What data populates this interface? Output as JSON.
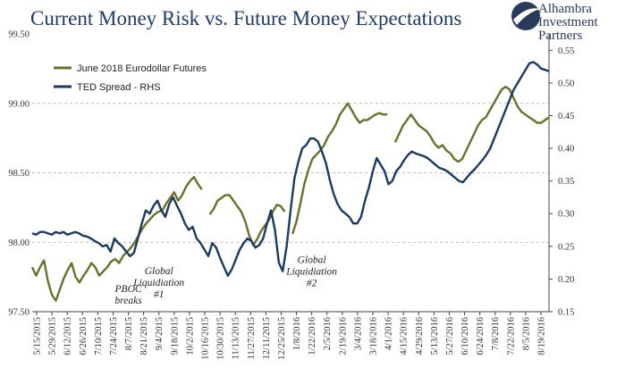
{
  "chart_data": {
    "type": "line",
    "title": "Current Money Risk vs. Future Money Expectations",
    "xlabel": "",
    "ylabel_left": "",
    "ylabel_right": "",
    "ylim_left": [
      97.5,
      99.5
    ],
    "ylim_right": [
      0.15,
      0.575
    ],
    "yticks_left": [
      "97.50",
      "98.00",
      "98.50",
      "99.00",
      "99.50"
    ],
    "yticks_right": [
      "0.15",
      "0.20",
      "0.25",
      "0.30",
      "0.35",
      "0.40",
      "0.45",
      "0.50",
      "0.55"
    ],
    "x_tick_labels": [
      "5/15/2015",
      "5/29/2015",
      "6/12/2015",
      "6/26/2015",
      "7/10/2015",
      "7/24/2015",
      "8/7/2015",
      "8/21/2015",
      "9/4/2015",
      "9/18/2015",
      "10/2/2015",
      "10/16/2015",
      "10/30/2015",
      "11/13/2015",
      "11/27/2015",
      "12/11/2015",
      "12/25/2015",
      "1/8/2016",
      "1/22/2016",
      "2/5/2016",
      "2/19/2016",
      "3/4/2016",
      "3/18/2016",
      "4/1/2016",
      "4/15/2016",
      "4/29/2016",
      "5/13/2016",
      "5/27/2016",
      "6/10/2016",
      "6/24/2016",
      "7/8/2016",
      "7/22/2016",
      "8/5/2016",
      "8/19/2016"
    ],
    "grid": "horizontal dashed",
    "legend_position": "top-left",
    "series": [
      {
        "name": "June 2018 Eurodollar Futures",
        "axis": "left",
        "color": "#6b6f2e",
        "gaps_after": [
          43,
          64,
          90
        ],
        "values": [
          97.82,
          97.76,
          97.82,
          97.87,
          97.72,
          97.62,
          97.58,
          97.66,
          97.74,
          97.8,
          97.85,
          97.75,
          97.71,
          97.76,
          97.8,
          97.85,
          97.82,
          97.76,
          97.79,
          97.82,
          97.86,
          97.88,
          97.85,
          97.9,
          97.93,
          97.96,
          98.0,
          98.05,
          98.1,
          98.14,
          98.17,
          98.2,
          98.22,
          98.23,
          98.28,
          98.32,
          98.36,
          98.3,
          98.34,
          98.4,
          98.44,
          98.47,
          98.42,
          98.38,
          null,
          98.2,
          98.24,
          98.3,
          98.32,
          98.34,
          98.34,
          98.3,
          98.26,
          98.22,
          98.15,
          98.05,
          97.98,
          98.02,
          98.08,
          98.12,
          98.16,
          98.22,
          98.27,
          98.26,
          98.22,
          null,
          98.06,
          98.15,
          98.28,
          98.42,
          98.52,
          98.6,
          98.63,
          98.66,
          98.7,
          98.76,
          98.8,
          98.85,
          98.92,
          98.96,
          99.0,
          98.95,
          98.9,
          98.86,
          98.88,
          98.88,
          98.9,
          98.92,
          98.93,
          98.92,
          98.92,
          null,
          98.72,
          98.78,
          98.84,
          98.88,
          98.92,
          98.88,
          98.84,
          98.82,
          98.8,
          98.76,
          98.71,
          98.68,
          98.7,
          98.66,
          98.64,
          98.6,
          98.58,
          98.6,
          98.66,
          98.72,
          98.78,
          98.84,
          98.88,
          98.9,
          98.95,
          99.0,
          99.05,
          99.1,
          99.12,
          99.1,
          99.04,
          98.98,
          98.94,
          98.92,
          98.9,
          98.88,
          98.86,
          98.86,
          98.88,
          98.9
        ]
      },
      {
        "name": "TED Spread - RHS",
        "axis": "right",
        "color": "#1c3a5e",
        "values": [
          0.27,
          0.268,
          0.272,
          0.272,
          0.27,
          0.268,
          0.272,
          0.27,
          0.272,
          0.268,
          0.27,
          0.272,
          0.27,
          0.266,
          0.265,
          0.262,
          0.258,
          0.255,
          0.25,
          0.252,
          0.242,
          0.262,
          0.255,
          0.25,
          0.242,
          0.235,
          0.24,
          0.262,
          0.285,
          0.305,
          0.3,
          0.312,
          0.32,
          0.305,
          0.295,
          0.315,
          0.325,
          0.312,
          0.3,
          0.285,
          0.275,
          0.28,
          0.262,
          0.255,
          0.245,
          0.235,
          0.255,
          0.248,
          0.232,
          0.218,
          0.205,
          0.215,
          0.23,
          0.245,
          0.255,
          0.262,
          0.258,
          0.248,
          0.252,
          0.262,
          0.285,
          0.305,
          0.275,
          0.225,
          0.212,
          0.25,
          0.305,
          0.355,
          0.38,
          0.4,
          0.405,
          0.415,
          0.415,
          0.41,
          0.395,
          0.378,
          0.352,
          0.33,
          0.315,
          0.305,
          0.3,
          0.295,
          0.285,
          0.285,
          0.295,
          0.32,
          0.34,
          0.365,
          0.385,
          0.375,
          0.365,
          0.345,
          0.35,
          0.365,
          0.372,
          0.382,
          0.39,
          0.395,
          0.392,
          0.39,
          0.388,
          0.385,
          0.38,
          0.375,
          0.37,
          0.368,
          0.365,
          0.36,
          0.355,
          0.35,
          0.348,
          0.355,
          0.362,
          0.368,
          0.375,
          0.382,
          0.39,
          0.4,
          0.415,
          0.43,
          0.445,
          0.46,
          0.475,
          0.49,
          0.5,
          0.51,
          0.52,
          0.53,
          0.532,
          0.528,
          0.522,
          0.52,
          0.518
        ]
      }
    ],
    "annotations": [
      {
        "lines": [
          "PBOC",
          "breaks"
        ],
        "x": "8/7/2015",
        "y_left": 97.64
      },
      {
        "lines": [
          "Global",
          "Liquidiation",
          "#1"
        ],
        "x": "9/4/2015",
        "y_left": 97.77
      },
      {
        "lines": [
          "Global",
          "Liquidiation",
          "#2"
        ],
        "x": "1/22/2016",
        "y_left": 97.85
      }
    ]
  },
  "logo": {
    "lines": [
      "Alhambra",
      "Investment",
      "Partners"
    ],
    "mark_color": "#2a3a5a"
  }
}
